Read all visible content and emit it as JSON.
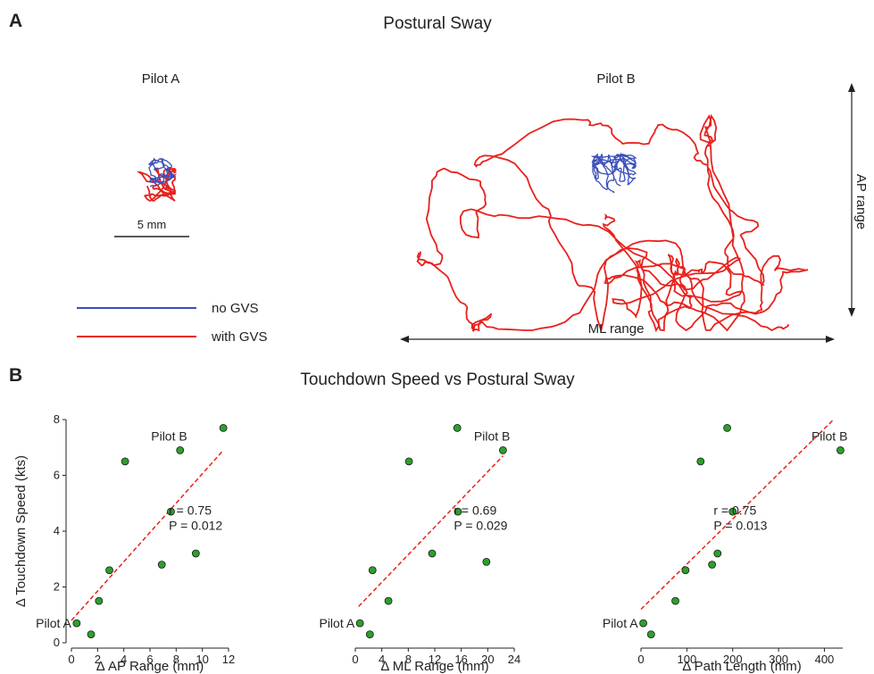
{
  "panel_a": {
    "letter": "A",
    "title": "Postural Sway",
    "pilot_a_label": "Pilot A",
    "pilot_b_label": "Pilot B",
    "scale_bar_label": "5 mm",
    "legend": [
      {
        "label": "no GVS",
        "color": "#3b4fb8"
      },
      {
        "label": "with GVS",
        "color": "#e8211c"
      }
    ],
    "ap_range_label": "AP range",
    "ml_range_label": "ML range"
  },
  "panel_b": {
    "letter": "B",
    "title": "Touchdown Speed vs Postural Sway"
  },
  "chart_data": [
    {
      "type": "scatter",
      "xlabel": "Δ AP Range (mm)",
      "ylabel": "Δ Touchdown Speed (kts)",
      "xlim": [
        0,
        12
      ],
      "ylim": [
        0,
        8
      ],
      "xticks": [
        "0",
        "2",
        "4",
        "6",
        "8",
        "10",
        "12"
      ],
      "yticks": [
        "0",
        "2",
        "4",
        "6",
        "8"
      ],
      "points": [
        {
          "x": 0.4,
          "y": 0.7
        },
        {
          "x": 1.5,
          "y": 0.3
        },
        {
          "x": 2.1,
          "y": 1.5
        },
        {
          "x": 2.9,
          "y": 2.6
        },
        {
          "x": 4.1,
          "y": 6.5
        },
        {
          "x": 6.9,
          "y": 2.8
        },
        {
          "x": 7.6,
          "y": 4.7
        },
        {
          "x": 8.3,
          "y": 6.9
        },
        {
          "x": 9.5,
          "y": 3.2
        },
        {
          "x": 11.6,
          "y": 7.7
        }
      ],
      "fit": {
        "x": [
          0,
          11.6
        ],
        "y": [
          0.8,
          6.9
        ]
      },
      "stats": {
        "r": "r = 0.75",
        "p": "P = 0.012"
      },
      "annotations": [
        {
          "text": "Pilot A",
          "point": 0
        },
        {
          "text": "Pilot B",
          "point": 7
        }
      ],
      "marker_color": "#2ca02c"
    },
    {
      "type": "scatter",
      "xlabel": "Δ ML Range (mm)",
      "ylabel": "",
      "xlim": [
        0,
        24
      ],
      "ylim": [
        0,
        8
      ],
      "xticks": [
        "0",
        "4",
        "8",
        "12",
        "16",
        "20",
        "24"
      ],
      "yticks": [],
      "points": [
        {
          "x": 0.7,
          "y": 0.7
        },
        {
          "x": 2.2,
          "y": 0.3
        },
        {
          "x": 5.0,
          "y": 1.5
        },
        {
          "x": 2.6,
          "y": 2.6
        },
        {
          "x": 8.1,
          "y": 6.5
        },
        {
          "x": 11.6,
          "y": 3.2
        },
        {
          "x": 15.5,
          "y": 4.7
        },
        {
          "x": 15.4,
          "y": 7.7
        },
        {
          "x": 19.8,
          "y": 2.9
        },
        {
          "x": 22.3,
          "y": 6.9
        }
      ],
      "fit": {
        "x": [
          0.5,
          22.3
        ],
        "y": [
          1.3,
          6.7
        ]
      },
      "stats": {
        "r": "r = 0.69",
        "p": "P = 0.029"
      },
      "annotations": [
        {
          "text": "Pilot A",
          "point": 0
        },
        {
          "text": "Pilot B",
          "point": 9
        }
      ],
      "marker_color": "#2ca02c"
    },
    {
      "type": "scatter",
      "xlabel": "Δ Path Length (mm)",
      "ylabel": "",
      "xlim": [
        0,
        440
      ],
      "ylim": [
        0,
        8
      ],
      "xticks": [
        "0",
        "100",
        "200",
        "300",
        "400"
      ],
      "yticks": [],
      "points": [
        {
          "x": 5,
          "y": 0.7
        },
        {
          "x": 22,
          "y": 0.3
        },
        {
          "x": 75,
          "y": 1.5
        },
        {
          "x": 97,
          "y": 2.6
        },
        {
          "x": 130,
          "y": 6.5
        },
        {
          "x": 155,
          "y": 2.8
        },
        {
          "x": 167,
          "y": 3.2
        },
        {
          "x": 188,
          "y": 7.7
        },
        {
          "x": 200,
          "y": 4.7
        },
        {
          "x": 435,
          "y": 6.9
        }
      ],
      "fit": {
        "x": [
          0,
          420
        ],
        "y": [
          1.2,
          8.0
        ]
      },
      "stats": {
        "r": "r = 0.75",
        "p": "P = 0.013"
      },
      "annotations": [
        {
          "text": "Pilot A",
          "point": 0
        },
        {
          "text": "Pilot B",
          "point": 9
        }
      ],
      "marker_color": "#2ca02c"
    }
  ]
}
